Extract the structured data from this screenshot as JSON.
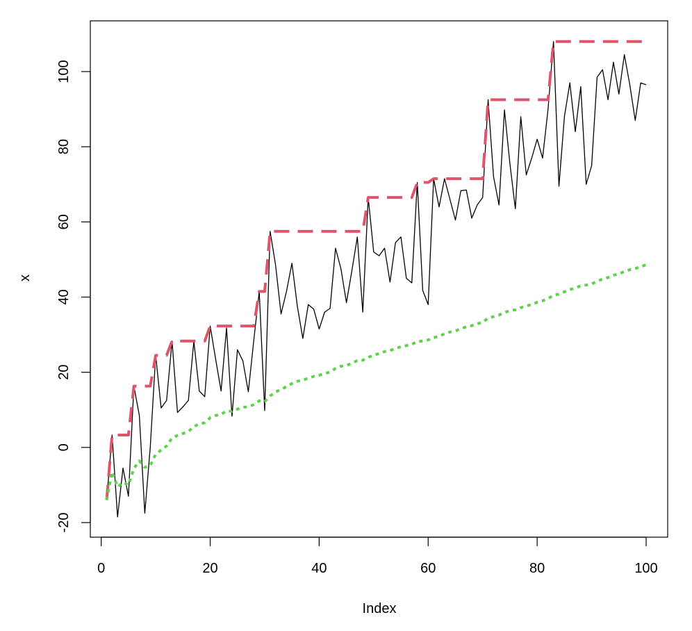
{
  "chart_data": {
    "type": "line",
    "title": "",
    "xlabel": "Index",
    "ylabel": "x",
    "xlim": [
      1,
      100
    ],
    "ylim": [
      -22,
      110
    ],
    "x_ticks": [
      0,
      20,
      40,
      60,
      80,
      100
    ],
    "y_ticks": [
      -20,
      0,
      20,
      40,
      60,
      80,
      100
    ],
    "grid": false,
    "legend": "none",
    "x": [
      1,
      2,
      3,
      4,
      5,
      6,
      7,
      8,
      9,
      10,
      11,
      12,
      13,
      14,
      15,
      16,
      17,
      18,
      19,
      20,
      21,
      22,
      23,
      24,
      25,
      26,
      27,
      28,
      29,
      30,
      31,
      32,
      33,
      34,
      35,
      36,
      37,
      38,
      39,
      40,
      41,
      42,
      43,
      44,
      45,
      46,
      47,
      48,
      49,
      50,
      51,
      52,
      53,
      54,
      55,
      56,
      57,
      58,
      59,
      60,
      61,
      62,
      63,
      64,
      65,
      66,
      67,
      68,
      69,
      70,
      71,
      72,
      73,
      74,
      75,
      76,
      77,
      78,
      79,
      80,
      81,
      82,
      83,
      84,
      85,
      86,
      87,
      88,
      89,
      90,
      91,
      92,
      93,
      94,
      95,
      96,
      97,
      98,
      99,
      100
    ],
    "series": [
      {
        "color": "#000000",
        "style": "solid",
        "values": [
          -14,
          3.3,
          -18.5,
          -5.5,
          -13,
          16.3,
          8.5,
          -17.5,
          0,
          24.5,
          10.5,
          12.5,
          28.3,
          9.3,
          10.8,
          12.5,
          28.3,
          15,
          13.5,
          32.3,
          23.5,
          15,
          31.8,
          8.3,
          26,
          23,
          14.8,
          28.5,
          41.5,
          9.8,
          57.5,
          48.5,
          35.5,
          41.5,
          49,
          37.5,
          29,
          38,
          36.8,
          31.5,
          36,
          37,
          53,
          47.5,
          38.5,
          47,
          56,
          36,
          66.5,
          52,
          51,
          53,
          44,
          54.5,
          56,
          45,
          43.8,
          70.5,
          41.8,
          38,
          71.5,
          64,
          71.5,
          66,
          60.5,
          68.3,
          68.5,
          61,
          64.5,
          66.5,
          92.5,
          72,
          64.5,
          89.8,
          75.5,
          63.5,
          88,
          72.5,
          77,
          82,
          77,
          90,
          108,
          69.5,
          88,
          97,
          84,
          96,
          70,
          75,
          98.5,
          100.5,
          92.5,
          102.5,
          94,
          104.5,
          96.5,
          87,
          97,
          96.5
        ]
      },
      {
        "color": "#DF536B",
        "style": "dashed",
        "values": [
          -14,
          3.3,
          3.3,
          3.3,
          3.3,
          16.3,
          16.3,
          16.3,
          16.3,
          24.5,
          24.5,
          24.5,
          28.3,
          28.3,
          28.3,
          28.3,
          28.3,
          28.3,
          28.3,
          32.3,
          32.3,
          32.3,
          32.3,
          32.3,
          32.3,
          32.3,
          32.3,
          32.3,
          41.5,
          41.5,
          57.5,
          57.5,
          57.5,
          57.5,
          57.5,
          57.5,
          57.5,
          57.5,
          57.5,
          57.5,
          57.5,
          57.5,
          57.5,
          57.5,
          57.5,
          57.5,
          57.5,
          57.5,
          66.5,
          66.5,
          66.5,
          66.5,
          66.5,
          66.5,
          66.5,
          66.5,
          66.5,
          70.5,
          70.5,
          70.5,
          71.5,
          71.5,
          71.5,
          71.5,
          71.5,
          71.5,
          71.5,
          71.5,
          71.5,
          71.5,
          92.5,
          92.5,
          92.5,
          92.5,
          92.5,
          92.5,
          92.5,
          92.5,
          92.5,
          92.5,
          92.5,
          92.5,
          108,
          108,
          108,
          108,
          108,
          108,
          108,
          108,
          108,
          108,
          108,
          108,
          108,
          108,
          108,
          108,
          108,
          108
        ]
      },
      {
        "color": "#61D04F",
        "style": "dotted",
        "values": [
          -14,
          -6.5,
          -10.5,
          -9.3,
          -10,
          -5.6,
          -3.6,
          -5.3,
          -4.8,
          -1.8,
          -0.7,
          0.4,
          2.5,
          3.2,
          3.7,
          4.2,
          5.6,
          6.2,
          6.6,
          7.9,
          8.5,
          8.8,
          9.7,
          9.6,
          10.2,
          10.7,
          10.8,
          11.4,
          12.4,
          12.2,
          13.7,
          14.8,
          15.4,
          16.2,
          17,
          17.6,
          17.9,
          18.4,
          18.9,
          19.2,
          19.6,
          20.1,
          21,
          21.6,
          21.8,
          22.4,
          23.1,
          23.2,
          24,
          24.5,
          25,
          25.5,
          25.8,
          26.3,
          26.8,
          27.1,
          27.4,
          28.2,
          28.3,
          28.6,
          29.2,
          29.6,
          30.2,
          30.7,
          31,
          31.6,
          32.1,
          32.4,
          32.9,
          33.3,
          34.4,
          34.8,
          35.2,
          35.9,
          36.4,
          36.6,
          37.2,
          37.6,
          38.1,
          38.6,
          39,
          39.6,
          40.5,
          40.8,
          41.4,
          42,
          42.4,
          43,
          43.2,
          43.5,
          44.2,
          44.8,
          45.2,
          45.8,
          46.2,
          46.8,
          47.3,
          47.6,
          48.1,
          48.6
        ]
      }
    ]
  }
}
